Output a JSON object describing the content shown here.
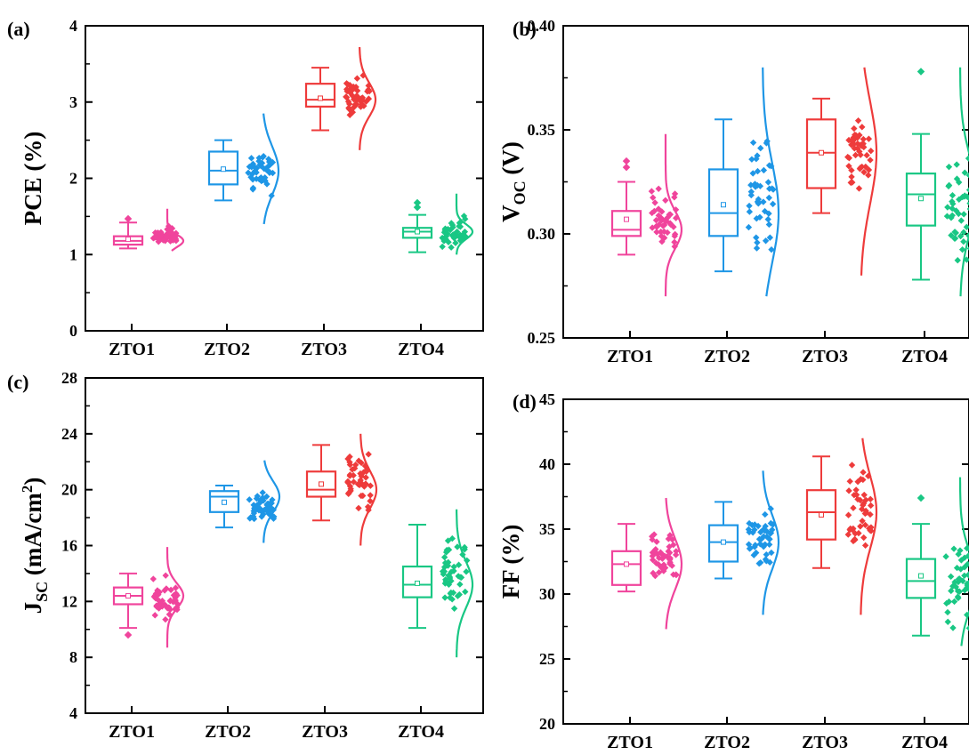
{
  "chart_data": [
    {
      "panel_label": "(a)",
      "type": "box",
      "ylabel": {
        "main": "PCE",
        "sub": "",
        "unit": " (%)"
      },
      "ylim": [
        0,
        4
      ],
      "yticks": [
        "0",
        "1",
        "2",
        "3",
        "4"
      ],
      "categories": [
        "ZTO1",
        "ZTO2",
        "ZTO3",
        "ZTO4"
      ],
      "series": [
        {
          "category": "ZTO1",
          "color": "#f0449c",
          "min": 1.08,
          "q1": 1.13,
          "median": 1.18,
          "q3": 1.24,
          "max": 1.42,
          "mean": 1.2,
          "outliers": [
            1.47
          ],
          "dist_min": 1.05,
          "dist_max": 1.6
        },
        {
          "category": "ZTO2",
          "color": "#1e96e6",
          "min": 1.71,
          "q1": 1.92,
          "median": 2.1,
          "q3": 2.35,
          "max": 2.5,
          "mean": 2.12,
          "outliers": [],
          "dist_min": 1.4,
          "dist_max": 2.85
        },
        {
          "category": "ZTO3",
          "color": "#ee3b3b",
          "min": 2.63,
          "q1": 2.94,
          "median": 3.03,
          "q3": 3.24,
          "max": 3.45,
          "mean": 3.05,
          "outliers": [],
          "dist_min": 2.37,
          "dist_max": 3.72
        },
        {
          "category": "ZTO4",
          "color": "#19c784",
          "min": 1.03,
          "q1": 1.22,
          "median": 1.3,
          "q3": 1.35,
          "max": 1.52,
          "mean": 1.3,
          "outliers": [
            1.62,
            1.68
          ],
          "dist_min": 1.0,
          "dist_max": 1.8
        }
      ]
    },
    {
      "panel_label": "(b)",
      "type": "box",
      "ylabel": {
        "main": "V",
        "sub": "OC",
        "unit": " (V)"
      },
      "ylim": [
        0.25,
        0.4
      ],
      "yticks": [
        "0.25",
        "0.30",
        "0.35",
        "0.40"
      ],
      "categories": [
        "ZTO1",
        "ZTO2",
        "ZTO3",
        "ZTO4"
      ],
      "series": [
        {
          "category": "ZTO1",
          "color": "#f0449c",
          "min": 0.29,
          "q1": 0.299,
          "median": 0.302,
          "q3": 0.311,
          "max": 0.325,
          "mean": 0.307,
          "outliers": [
            0.332,
            0.335
          ],
          "dist_min": 0.27,
          "dist_max": 0.348
        },
        {
          "category": "ZTO2",
          "color": "#1e96e6",
          "min": 0.282,
          "q1": 0.299,
          "median": 0.31,
          "q3": 0.331,
          "max": 0.355,
          "mean": 0.314,
          "outliers": [],
          "dist_min": 0.27,
          "dist_max": 0.38
        },
        {
          "category": "ZTO3",
          "color": "#ee3b3b",
          "min": 0.31,
          "q1": 0.322,
          "median": 0.339,
          "q3": 0.355,
          "max": 0.365,
          "mean": 0.339,
          "outliers": [],
          "dist_min": 0.28,
          "dist_max": 0.38
        },
        {
          "category": "ZTO4",
          "color": "#19c784",
          "min": 0.278,
          "q1": 0.304,
          "median": 0.319,
          "q3": 0.329,
          "max": 0.348,
          "mean": 0.317,
          "outliers": [
            0.378
          ],
          "dist_min": 0.27,
          "dist_max": 0.38
        }
      ]
    },
    {
      "panel_label": "(c)",
      "type": "box",
      "ylabel": {
        "main": "J",
        "sub": "SC",
        "unit": " (mA/cm",
        "sup": "2",
        "close": ")"
      },
      "ylim": [
        4,
        28
      ],
      "yticks": [
        "4",
        "8",
        "12",
        "16",
        "20",
        "24",
        "28"
      ],
      "categories": [
        "ZTO1",
        "ZTO2",
        "ZTO3",
        "ZTO4"
      ],
      "series": [
        {
          "category": "ZTO1",
          "color": "#f0449c",
          "min": 10.1,
          "q1": 11.8,
          "median": 12.4,
          "q3": 13.0,
          "max": 14.0,
          "mean": 12.4,
          "outliers": [
            9.6
          ],
          "dist_min": 8.7,
          "dist_max": 15.9
        },
        {
          "category": "ZTO2",
          "color": "#1e96e6",
          "min": 17.3,
          "q1": 18.4,
          "median": 19.5,
          "q3": 19.9,
          "max": 20.3,
          "mean": 19.1,
          "outliers": [],
          "dist_min": 16.2,
          "dist_max": 22.1
        },
        {
          "category": "ZTO3",
          "color": "#ee3b3b",
          "min": 17.8,
          "q1": 19.5,
          "median": 20.0,
          "q3": 21.3,
          "max": 23.2,
          "mean": 20.4,
          "outliers": [],
          "dist_min": 16.0,
          "dist_max": 24.0
        },
        {
          "category": "ZTO4",
          "color": "#19c784",
          "min": 10.1,
          "q1": 12.3,
          "median": 13.2,
          "q3": 14.5,
          "max": 17.5,
          "mean": 13.3,
          "outliers": [],
          "dist_min": 8.0,
          "dist_max": 18.6
        }
      ]
    },
    {
      "panel_label": "(d)",
      "type": "box",
      "ylabel": {
        "main": "FF",
        "sub": "",
        "unit": " (%)"
      },
      "ylim": [
        20,
        45
      ],
      "yticks": [
        "20",
        "25",
        "30",
        "35",
        "40",
        "45"
      ],
      "categories": [
        "ZTO1",
        "ZTO2",
        "ZTO3",
        "ZTO4"
      ],
      "series": [
        {
          "category": "ZTO1",
          "color": "#f0449c",
          "min": 30.2,
          "q1": 30.7,
          "median": 32.3,
          "q3": 33.3,
          "max": 35.4,
          "mean": 32.3,
          "outliers": [],
          "dist_min": 27.3,
          "dist_max": 37.4
        },
        {
          "category": "ZTO2",
          "color": "#1e96e6",
          "min": 31.2,
          "q1": 32.5,
          "median": 34.0,
          "q3": 35.3,
          "max": 37.1,
          "mean": 34.0,
          "outliers": [],
          "dist_min": 28.4,
          "dist_max": 39.5
        },
        {
          "category": "ZTO3",
          "color": "#ee3b3b",
          "min": 32.0,
          "q1": 34.2,
          "median": 36.3,
          "q3": 38.0,
          "max": 40.6,
          "mean": 36.1,
          "outliers": [],
          "dist_min": 28.4,
          "dist_max": 42.0
        },
        {
          "category": "ZTO4",
          "color": "#19c784",
          "min": 26.8,
          "q1": 29.7,
          "median": 31.0,
          "q3": 32.7,
          "max": 35.4,
          "mean": 31.4,
          "outliers": [
            37.4
          ],
          "dist_min": 26.0,
          "dist_max": 39.0
        }
      ]
    }
  ]
}
